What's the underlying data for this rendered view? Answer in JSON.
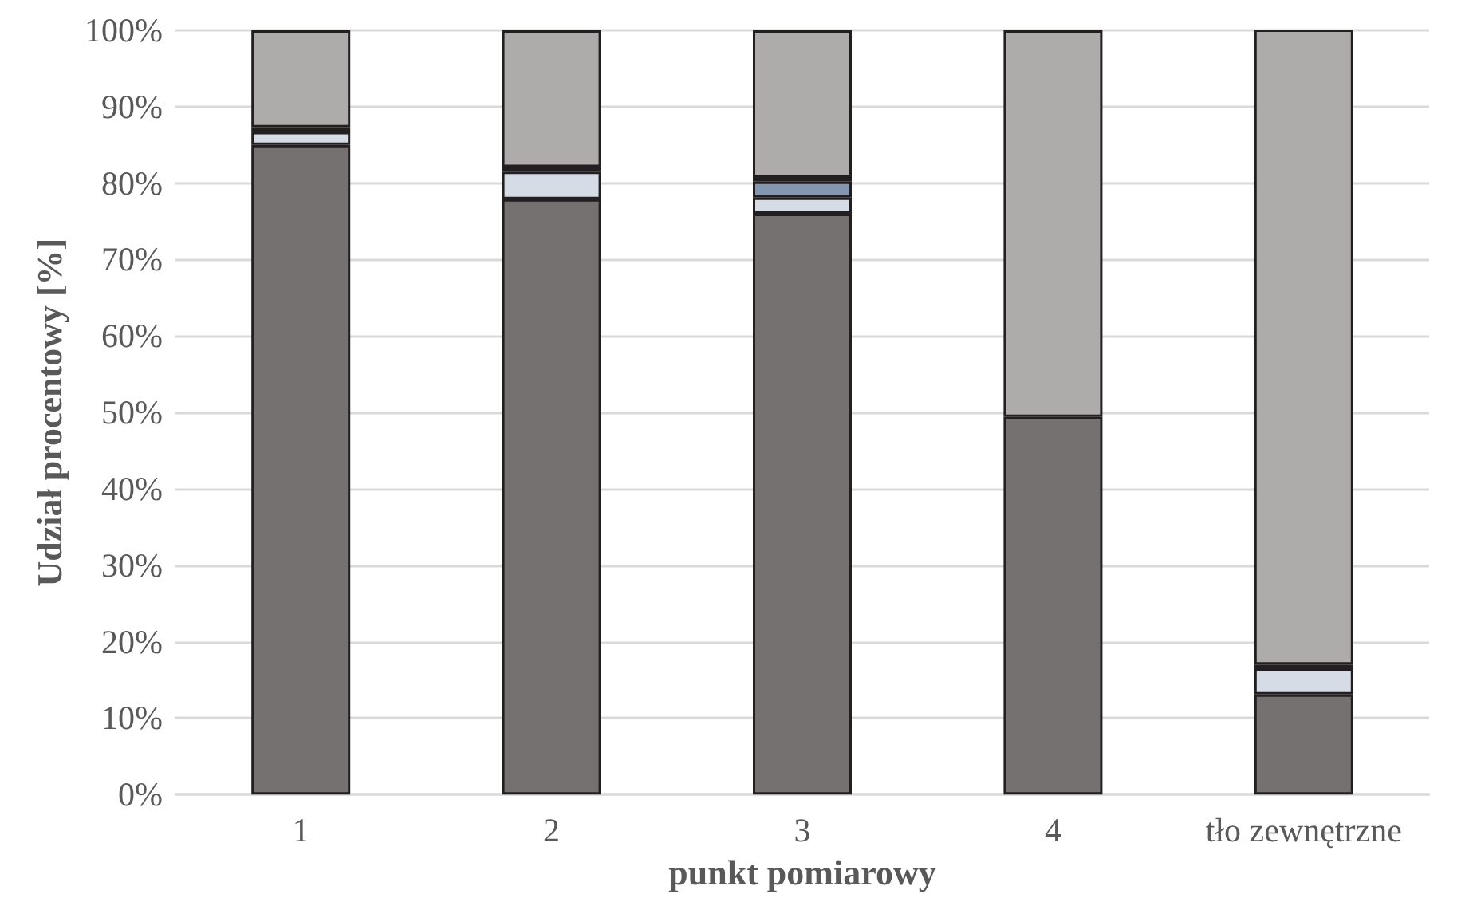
{
  "chart_data": {
    "type": "bar",
    "stacked": true,
    "xlabel": "punkt pomiarowy",
    "ylabel": "Udział procentowy [%]",
    "categories": [
      "1",
      "2",
      "3",
      "4",
      "tło zewnętrzne"
    ],
    "series": [
      {
        "color": "#767171",
        "values": [
          85.0,
          77.9,
          76.0,
          49.4,
          13.1
        ]
      },
      {
        "color": "#d6dce5",
        "values": [
          1.7,
          3.6,
          2.1,
          null,
          3.4
        ]
      },
      {
        "color": "#8497b0",
        "values": [
          null,
          null,
          2.1,
          null,
          null
        ]
      },
      {
        "color": "#262626",
        "values": [
          0.6,
          0.6,
          0.6,
          null,
          0.5
        ]
      },
      {
        "color": "#aeabab",
        "values": [
          12.7,
          17.9,
          19.2,
          50.6,
          83.1
        ]
      }
    ],
    "ylim": [
      0,
      100
    ],
    "yticks": [
      {
        "value": 0,
        "label": "0%"
      },
      {
        "value": 10,
        "label": "10%"
      },
      {
        "value": 20,
        "label": "20%"
      },
      {
        "value": 30,
        "label": "30%"
      },
      {
        "value": 40,
        "label": "40%"
      },
      {
        "value": 50,
        "label": "50%"
      },
      {
        "value": 60,
        "label": "60%"
      },
      {
        "value": 70,
        "label": "70%"
      },
      {
        "value": 80,
        "label": "80%"
      },
      {
        "value": 90,
        "label": "90%"
      },
      {
        "value": 100,
        "label": "100%"
      }
    ],
    "grid": "y"
  }
}
